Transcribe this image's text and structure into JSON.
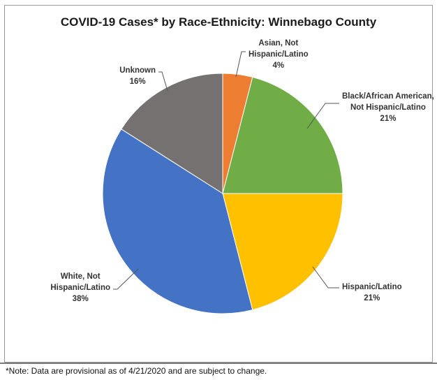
{
  "chart_data": {
    "type": "pie",
    "title": "COVID-19 Cases* by Race-Ethnicity: Winnebago County",
    "slices": [
      {
        "label_lines": [
          "Asian, Not",
          "Hispanic/Latino",
          "4%"
        ],
        "value": 4,
        "color": "#ed7d31"
      },
      {
        "label_lines": [
          "Black/African American,",
          "Not Hispanic/Latino",
          "21%"
        ],
        "value": 21,
        "color": "#70ad47"
      },
      {
        "label_lines": [
          "Hispanic/Latino",
          "21%"
        ],
        "value": 21,
        "color": "#ffc000"
      },
      {
        "label_lines": [
          "White, Not",
          "Hispanic/Latino",
          "38%"
        ],
        "value": 38,
        "color": "#4472c4"
      },
      {
        "label_lines": [
          "Unknown",
          "16%"
        ],
        "value": 16,
        "color": "#767171"
      }
    ]
  },
  "note": "*Note: Data are provisional as of 4/21/2020 and are subject to change."
}
